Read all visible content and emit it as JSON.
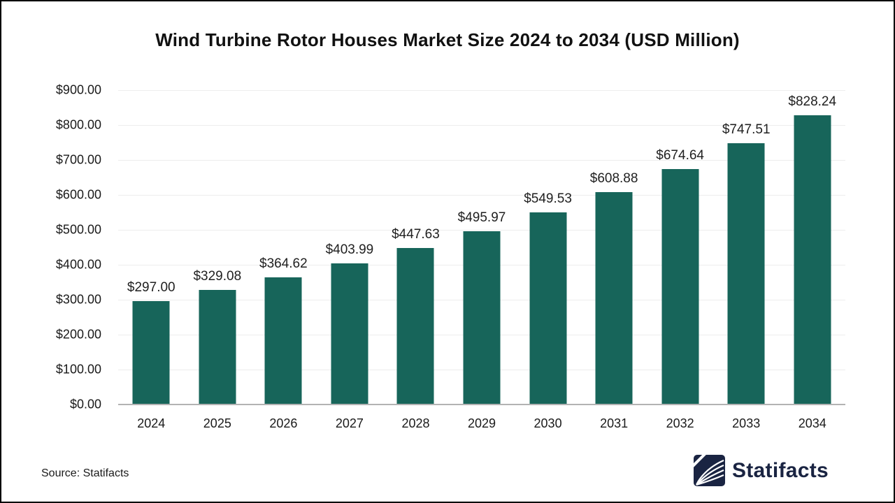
{
  "chart_data": {
    "type": "bar",
    "title": "Wind Turbine Rotor Houses Market Size 2024 to 2034 (USD Million)",
    "categories": [
      "2024",
      "2025",
      "2026",
      "2027",
      "2028",
      "2029",
      "2030",
      "2031",
      "2032",
      "2033",
      "2034"
    ],
    "values": [
      297.0,
      329.08,
      364.62,
      403.99,
      447.63,
      495.97,
      549.53,
      608.88,
      674.64,
      747.51,
      828.24
    ],
    "value_labels": [
      "$297.00",
      "$329.08",
      "$364.62",
      "$403.99",
      "$447.63",
      "$495.97",
      "$549.53",
      "$608.88",
      "$674.64",
      "$747.51",
      "$828.24"
    ],
    "y_tick_labels": [
      "$900.00",
      "$800.00",
      "$700.00",
      "$600.00",
      "$500.00",
      "$400.00",
      "$300.00",
      "$200.00",
      "$100.00",
      "$0.00"
    ],
    "ylim": [
      0,
      900
    ],
    "xlabel": "",
    "ylabel": "",
    "grid": true,
    "legend": "none",
    "bar_color": "#17655a"
  },
  "source": {
    "text": "Source: Statifacts"
  },
  "logo": {
    "text": "Statifacts",
    "color": "#1a2442"
  }
}
